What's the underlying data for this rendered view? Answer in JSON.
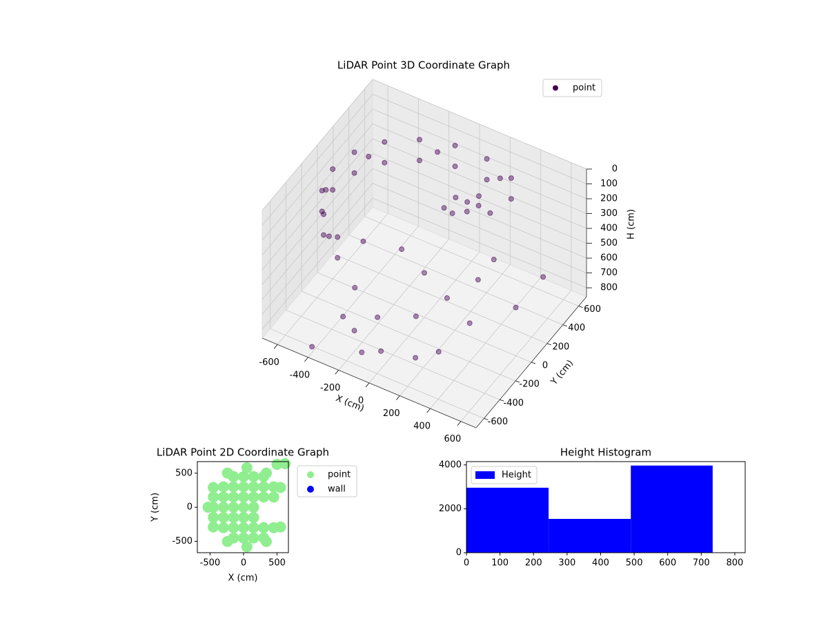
{
  "chart_data": [
    {
      "type": "scatter3d",
      "title": "LiDAR Point 3D Coordinate Graph",
      "x_label": "X (cm)",
      "y_label": "Y (cm)",
      "z_label": "H (cm)",
      "xlim": [
        -700,
        700
      ],
      "ylim": [
        -700,
        700
      ],
      "zlim": [
        0,
        860
      ],
      "z_inverted": true,
      "xticks": [
        -600,
        -400,
        -200,
        0,
        200,
        400,
        600
      ],
      "yticks": [
        -600,
        -400,
        -200,
        0,
        200,
        400,
        600
      ],
      "zticks": [
        0,
        100,
        200,
        300,
        400,
        500,
        600,
        700,
        800
      ],
      "grid": true,
      "legend": "upper right",
      "series": [
        {
          "name": "point",
          "color": "#440154",
          "x": [
            300,
            104,
            -104,
            -300,
            -460,
            -564,
            -600,
            -564,
            -460,
            -300,
            300,
            104,
            -104,
            -300,
            -460,
            -564,
            -600,
            -564,
            -460,
            -300,
            205,
            -205,
            -520,
            -591,
            -386,
            50,
            150,
            100,
            200,
            0,
            150,
            80,
            250,
            -400,
            -200,
            0,
            200,
            300,
            -300,
            100,
            400,
            -100,
            300,
            -200,
            0,
            200,
            -100,
            300,
            -300,
            650,
            700,
            -400
          ],
          "y": [
            520,
            591,
            591,
            520,
            386,
            205,
            0,
            -205,
            -386,
            -520,
            520,
            591,
            591,
            520,
            386,
            205,
            0,
            -205,
            -386,
            -520,
            564,
            564,
            300,
            -104,
            -460,
            300,
            250,
            350,
            300,
            250,
            400,
            200,
            350,
            0,
            100,
            0,
            -100,
            100,
            -300,
            -300,
            -200,
            -400,
            300,
            -500,
            -550,
            -500,
            -600,
            -400,
            -450,
            -100,
            150,
            -650
          ],
          "z": [
            120,
            120,
            120,
            120,
            120,
            120,
            120,
            120,
            120,
            120,
            260,
            260,
            260,
            260,
            260,
            260,
            260,
            260,
            260,
            260,
            190,
            190,
            190,
            190,
            190,
            220,
            240,
            260,
            210,
            280,
            230,
            250,
            270,
            520,
            550,
            560,
            580,
            540,
            600,
            620,
            600,
            650,
            530,
            720,
            740,
            730,
            760,
            710,
            700,
            450,
            380,
            820
          ]
        }
      ]
    },
    {
      "type": "scatter",
      "title": "LiDAR Point 2D Coordinate Graph",
      "x_label": "X (cm)",
      "y_label": "Y (cm)",
      "xlim": [
        -690,
        670
      ],
      "ylim": [
        -667,
        670
      ],
      "xticks": [
        -500,
        0,
        500
      ],
      "yticks": [
        -500,
        0,
        500
      ],
      "legend": "outside right",
      "series": [
        {
          "name": "point",
          "color": "#90ee90",
          "x": [
            -450,
            -450,
            -450,
            -300,
            -300,
            -300,
            -300,
            -300,
            -150,
            -150,
            -150,
            -150,
            -150,
            -150,
            -150,
            0,
            0,
            0,
            0,
            0,
            0,
            0,
            150,
            150,
            150,
            150,
            150,
            150,
            150,
            300,
            300,
            300,
            300,
            300,
            450,
            450,
            450,
            552,
            340,
            50,
            -240,
            -452,
            -530,
            -452,
            -240,
            50,
            340,
            552,
            500,
            620
          ],
          "y": [
            -150,
            0,
            150,
            -300,
            -150,
            0,
            150,
            300,
            -450,
            -300,
            -150,
            0,
            150,
            300,
            450,
            -450,
            -300,
            -150,
            0,
            150,
            300,
            450,
            -450,
            -300,
            -150,
            0,
            150,
            300,
            450,
            -450,
            -300,
            150,
            300,
            450,
            -300,
            150,
            300,
            290,
            502,
            580,
            502,
            290,
            0,
            -290,
            -502,
            -580,
            -502,
            -290,
            630,
            640
          ]
        },
        {
          "name": "wall",
          "color": "#0000ff",
          "x": [],
          "y": []
        }
      ]
    },
    {
      "type": "histogram",
      "title": "Height Histogram",
      "name": "Height",
      "color": "#0000ff",
      "bins": [
        0,
        245,
        490,
        734
      ],
      "counts": [
        2960,
        1540,
        3970
      ],
      "xlim": [
        0,
        831
      ],
      "ylim": [
        0,
        4150
      ],
      "xticks": [
        0,
        100,
        200,
        300,
        400,
        500,
        600,
        700,
        800
      ],
      "yticks": [
        0,
        2000,
        4000
      ],
      "legend": "upper left"
    }
  ]
}
